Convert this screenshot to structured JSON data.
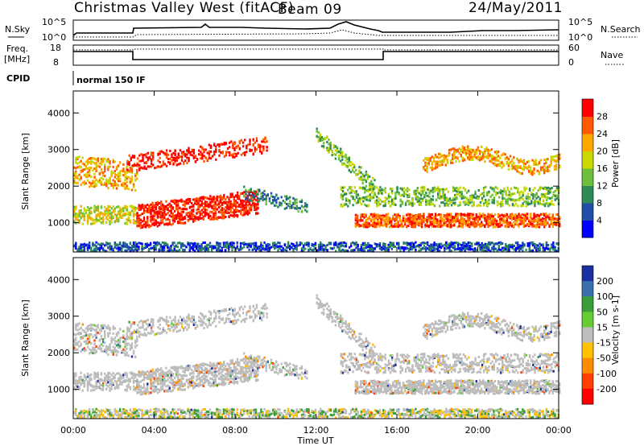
{
  "header": {
    "title": "Christmas Valley West (fitACF)",
    "beam": "Beam 09",
    "date": "24/May/2011"
  },
  "panels": {
    "nsky": {
      "left_label": "N.Sky",
      "right_label": "N.Search",
      "left_ticks": [
        "10^5",
        "10^0"
      ],
      "right_ticks": [
        "10^5",
        "10^0"
      ]
    },
    "freq": {
      "left_label_1": "Freq.",
      "left_label_2": "[MHz]",
      "right_label": "Nave",
      "left_ticks": [
        "18",
        "8"
      ],
      "right_ticks": [
        "60",
        "0"
      ]
    },
    "cpid": {
      "label": "CPID",
      "value": "normal 150 IF"
    }
  },
  "colors": {
    "power_scale": [
      "#0000ff",
      "#1f4fa8",
      "#2e8b57",
      "#6fbf3f",
      "#c8d800",
      "#ffa500",
      "#ff5a00",
      "#ff0000"
    ],
    "velocity_scale": [
      "#1a2fa0",
      "#3a6fb0",
      "#3a9f3a",
      "#66cc33",
      "#bdbdbd",
      "#ffc000",
      "#ff8c00",
      "#ff4000",
      "#ff0000"
    ]
  },
  "chart_data": [
    {
      "type": "heatmap",
      "name": "power-panel",
      "xlabel": "",
      "ylabel": "Slant Range [km]",
      "x_ticks": [
        "00:00",
        "04:00",
        "08:00",
        "12:00",
        "16:00",
        "20:00",
        "00:00"
      ],
      "y_ticks": [
        1000,
        2000,
        3000,
        4000
      ],
      "ylim": [
        200,
        4600
      ],
      "colorbar": {
        "label": "Power [dB]",
        "ticks": [
          "4",
          "8",
          "12",
          "16",
          "20",
          "24",
          "28"
        ]
      }
    },
    {
      "type": "heatmap",
      "name": "velocity-panel",
      "xlabel": "Time UT",
      "ylabel": "Slant Range [km]",
      "x_ticks": [
        "00:00",
        "04:00",
        "08:00",
        "12:00",
        "16:00",
        "20:00",
        "00:00"
      ],
      "y_ticks": [
        1000,
        2000,
        3000,
        4000
      ],
      "ylim": [
        200,
        4600
      ],
      "colorbar": {
        "label": "Velocity [m s-1]",
        "ticks": [
          "200",
          "100",
          "50",
          "15",
          "-15",
          "-50",
          "-100",
          "-200"
        ]
      }
    }
  ]
}
